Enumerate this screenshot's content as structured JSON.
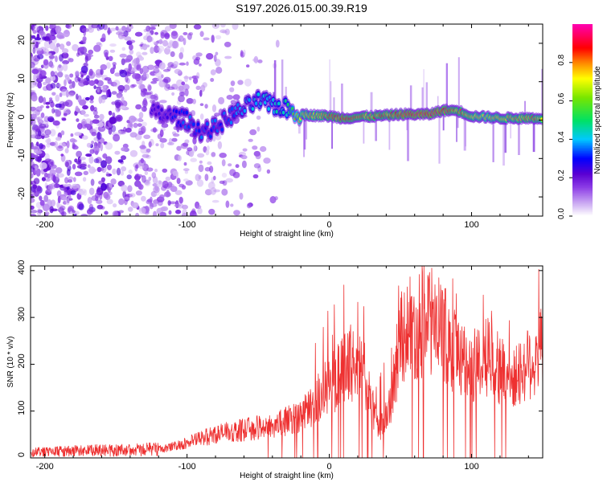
{
  "title": "S197.2026.015.00.39.R19",
  "chart_data": [
    {
      "type": "heatmap",
      "title": "S197.2026.015.00.39.R19",
      "xlabel": "Height of straight line (km)",
      "ylabel": "Frequency (Hz)",
      "xlim": [
        -210,
        150
      ],
      "ylim": [
        -25,
        25
      ],
      "xticks": [
        -200,
        -100,
        0,
        100
      ],
      "yticks": [
        -20,
        -10,
        0,
        10,
        20
      ],
      "colorbar": {
        "label": "Normalized spectral amplitude",
        "range": [
          0.0,
          1.0
        ],
        "ticks": [
          "0.0",
          "0.2",
          "0.4",
          "0.6",
          "0.8"
        ],
        "colors": [
          "#ffffff",
          "#c8a8f0",
          "#6a00d0",
          "#0000ff",
          "#00c8ff",
          "#00e060",
          "#ffff00",
          "#ff8000",
          "#ff0000",
          "#ff00a0"
        ]
      },
      "ridge": {
        "x": [
          -125,
          -110,
          -100,
          -90,
          -80,
          -70,
          -60,
          -50,
          -40,
          -30,
          -20,
          -10,
          0,
          10,
          20,
          30,
          40,
          50,
          60,
          70,
          80,
          90,
          100,
          110,
          120,
          130,
          140,
          150
        ],
        "freq": [
          2,
          1,
          0,
          -3,
          -2,
          1,
          3,
          5,
          4,
          3,
          1.5,
          1.2,
          1,
          0.5,
          0.8,
          1,
          1.2,
          1.5,
          1.5,
          1.5,
          2.5,
          2.5,
          1,
          0.8,
          0.5,
          0.5,
          0.5,
          0.5
        ],
        "amp": [
          0.25,
          0.3,
          0.35,
          0.35,
          0.35,
          0.35,
          0.4,
          0.45,
          0.45,
          0.5,
          0.75,
          0.8,
          0.85,
          0.9,
          0.85,
          0.85,
          0.85,
          0.9,
          0.95,
          0.95,
          0.9,
          0.85,
          0.8,
          0.75,
          0.8,
          0.8,
          0.85,
          0.8
        ]
      }
    },
    {
      "type": "line",
      "xlabel": "Height of straight line (km)",
      "ylabel": "SNR (10 * v/v)",
      "xlim": [
        -210,
        150
      ],
      "ylim": [
        0,
        410
      ],
      "xticks": [
        -200,
        -100,
        0,
        100
      ],
      "yticks": [
        0,
        100,
        200,
        300,
        400
      ],
      "series": [
        {
          "name": "SNR",
          "color": "#ee3030",
          "x": [
            -210,
            -190,
            -170,
            -150,
            -130,
            -115,
            -100,
            -90,
            -80,
            -70,
            -60,
            -50,
            -40,
            -30,
            -20,
            -15,
            -10,
            -5,
            0,
            5,
            10,
            15,
            20,
            25,
            30,
            35,
            40,
            45,
            50,
            55,
            60,
            65,
            70,
            75,
            80,
            85,
            90,
            95,
            100,
            105,
            110,
            115,
            120,
            125,
            130,
            135,
            140,
            145,
            150
          ],
          "y": [
            12,
            14,
            16,
            16,
            18,
            22,
            35,
            45,
            55,
            60,
            65,
            70,
            75,
            85,
            100,
            110,
            130,
            150,
            170,
            180,
            210,
            220,
            210,
            190,
            120,
            60,
            100,
            150,
            290,
            300,
            300,
            305,
            320,
            300,
            290,
            260,
            250,
            220,
            210,
            215,
            230,
            250,
            200,
            190,
            180,
            200,
            220,
            230,
            250
          ]
        }
      ]
    }
  ]
}
